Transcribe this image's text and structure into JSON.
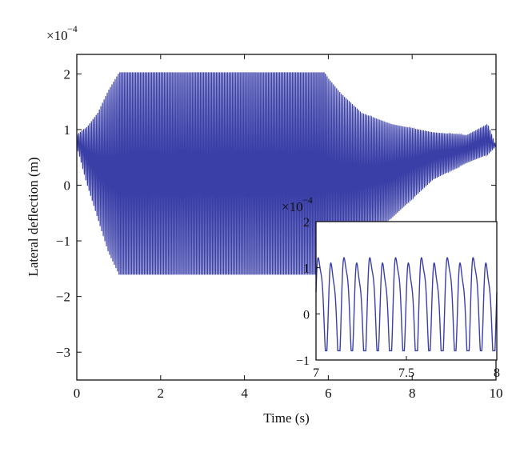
{
  "chart_data": [
    {
      "type": "line",
      "title": "",
      "xlabel": "Time (s)",
      "ylabel": "Lateral deflection (m)",
      "y_multiplier": "×10",
      "y_exponent": "−4",
      "xlim": [
        0,
        10
      ],
      "ylim": [
        -3.5,
        2.35
      ],
      "xticks": [
        0,
        2,
        4,
        6,
        8,
        10
      ],
      "xtick_labels": [
        "0",
        "2",
        "4",
        "6",
        "8",
        "10"
      ],
      "yticks": [
        2,
        1,
        0,
        -1,
        -2,
        -3
      ],
      "ytick_labels": [
        "2",
        "1",
        "0",
        "−1",
        "−2",
        "−3"
      ],
      "grid": false,
      "series": [
        {
          "color": "#3a3fa8",
          "x": [
            0,
            0.25,
            0.5,
            0.75,
            1.0,
            2.0,
            3.0,
            4.0,
            5.0,
            5.9,
            6.3,
            6.8,
            7.5,
            8.5,
            9.3,
            9.8,
            10.0
          ],
          "y_upper": [
            0.9,
            1.05,
            1.3,
            1.7,
            2.02,
            2.02,
            2.02,
            2.02,
            2.02,
            2.02,
            1.65,
            1.3,
            1.1,
            0.95,
            0.9,
            1.1,
            0.7
          ],
          "y_lower": [
            0.7,
            0.0,
            -0.6,
            -1.2,
            -1.6,
            -1.6,
            -1.6,
            -1.6,
            -1.6,
            -1.6,
            -1.35,
            -1.0,
            -0.6,
            0.1,
            0.4,
            0.55,
            0.7
          ]
        }
      ]
    },
    {
      "type": "line",
      "title": "",
      "role": "inset (zoom of main plot)",
      "y_multiplier": "×10",
      "y_exponent": "−4",
      "xlim": [
        7,
        8
      ],
      "ylim": [
        -1,
        2
      ],
      "xticks": [
        7,
        7.5,
        8
      ],
      "xtick_labels": [
        "7",
        "7.5",
        "8"
      ],
      "yticks": [
        2,
        1,
        0,
        -1
      ],
      "ytick_labels": [
        "2",
        "1",
        "0",
        "−1"
      ],
      "grid": false,
      "series": [
        {
          "color": "#3a3fa8",
          "cycles": 14,
          "peak_value": 1.3,
          "trough_value": -0.8
        }
      ]
    }
  ]
}
